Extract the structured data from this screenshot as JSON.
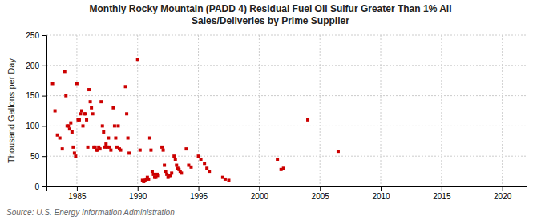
{
  "chart_data": {
    "type": "scatter",
    "title": "Monthly Rocky Mountain (PADD 4) Residual Fuel Oil Sulfur Greater Than 1% All\nSales/Deliveries by Prime Supplier",
    "y_label": "Thousand Gallons per Day",
    "annotations": [
      "Source: U.S. Energy Information Administration"
    ],
    "color": "#cc0000",
    "marker": "square",
    "grid": true,
    "xlim": [
      1982.5,
      2022
    ],
    "ylim": [
      0,
      250
    ],
    "xticks": [
      1985,
      1990,
      1995,
      2000,
      2005,
      2010,
      2015,
      2020
    ],
    "yticks": [
      0,
      50,
      100,
      150,
      200,
      250
    ],
    "x": [
      1983.0,
      1983.2,
      1983.4,
      1983.6,
      1983.8,
      1984.0,
      1984.1,
      1984.2,
      1984.3,
      1984.4,
      1984.5,
      1984.6,
      1984.7,
      1984.8,
      1984.9,
      1985.0,
      1985.1,
      1985.2,
      1985.3,
      1985.4,
      1985.5,
      1985.6,
      1985.7,
      1985.8,
      1985.9,
      1986.0,
      1986.1,
      1986.2,
      1986.3,
      1986.4,
      1986.5,
      1986.6,
      1986.7,
      1986.8,
      1986.9,
      1987.0,
      1987.1,
      1987.2,
      1987.3,
      1987.4,
      1987.5,
      1987.6,
      1987.7,
      1987.8,
      1988.0,
      1988.1,
      1988.2,
      1988.3,
      1988.4,
      1988.5,
      1988.6,
      1989.0,
      1989.1,
      1989.2,
      1989.3,
      1990.0,
      1990.2,
      1990.4,
      1990.5,
      1990.6,
      1990.7,
      1990.8,
      1990.9,
      1991.0,
      1991.1,
      1991.2,
      1991.3,
      1991.4,
      1991.5,
      1991.6,
      1991.7,
      1992.0,
      1992.1,
      1992.2,
      1992.3,
      1992.4,
      1992.5,
      1992.6,
      1992.7,
      1992.8,
      1993.0,
      1993.1,
      1993.2,
      1993.3,
      1993.4,
      1993.5,
      1993.6,
      1994.0,
      1994.2,
      1994.4,
      1995.0,
      1995.2,
      1995.5,
      1995.7,
      1995.9,
      1997.0,
      1997.2,
      1997.5,
      2001.5,
      2001.8,
      2002.0,
      2004.0,
      2006.5
    ],
    "values": [
      170,
      125,
      85,
      80,
      62,
      190,
      150,
      100,
      100,
      95,
      105,
      90,
      65,
      55,
      50,
      170,
      110,
      110,
      120,
      125,
      100,
      120,
      120,
      110,
      65,
      160,
      140,
      130,
      120,
      65,
      65,
      60,
      60,
      65,
      62,
      140,
      100,
      90,
      65,
      70,
      65,
      80,
      65,
      60,
      130,
      100,
      80,
      65,
      100,
      62,
      60,
      165,
      120,
      80,
      55,
      210,
      60,
      10,
      8,
      10,
      12,
      15,
      12,
      80,
      60,
      25,
      20,
      15,
      15,
      20,
      18,
      65,
      60,
      35,
      25,
      20,
      15,
      18,
      18,
      22,
      50,
      45,
      35,
      30,
      28,
      25,
      22,
      62,
      35,
      32,
      50,
      45,
      38,
      30,
      25,
      15,
      12,
      10,
      45,
      28,
      30,
      110,
      58
    ]
  }
}
